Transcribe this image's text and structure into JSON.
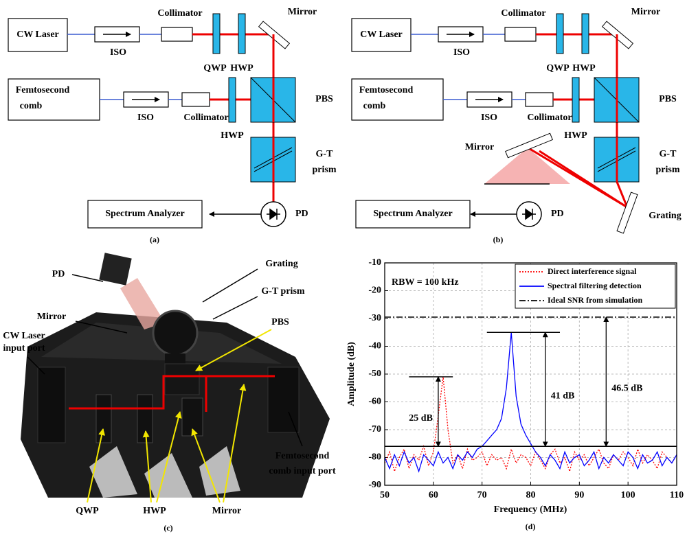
{
  "panel_a": {
    "cw_laser": "CW Laser",
    "iso_1": "ISO",
    "collimator_1": "Collimator",
    "qwp": "QWP",
    "hwp_1": "HWP",
    "mirror": "Mirror",
    "comb": [
      "Femtosecond",
      "comb"
    ],
    "iso_2": "ISO",
    "collimator_2": "Collimator",
    "hwp_2": "HWP",
    "pbs": "PBS",
    "gt_prism": [
      "G-T",
      "prism"
    ],
    "spectrum_analyzer": "Spectrum Analyzer",
    "pd": "PD",
    "caption": "(a)"
  },
  "panel_b": {
    "cw_laser": "CW Laser",
    "iso_1": "ISO",
    "collimator_1": "Collimator",
    "qwp": "QWP",
    "hwp_1": "HWP",
    "mirror": "Mirror",
    "comb": [
      "Femtosecond",
      "comb"
    ],
    "iso_2": "ISO",
    "collimator_2": "Collimator",
    "hwp_2": "HWP",
    "pbs": "PBS",
    "gt_prism": [
      "G-T",
      "prism"
    ],
    "spectrum_analyzer": "Spectrum Analyzer",
    "pd": "PD",
    "mirror_2": "Mirror",
    "grating": "Grating",
    "caption": "(b)"
  },
  "panel_c": {
    "pd": "PD",
    "grating": "Grating",
    "mirror_top": "Mirror",
    "gt_prism": "G-T prism",
    "pbs": "PBS",
    "cw_port": [
      "CW Laser",
      "input port"
    ],
    "comb_port": [
      "Femtosecond",
      "comb input port"
    ],
    "qwp": "QWP",
    "hwp": "HWP",
    "mirror_bottom": "Mirror",
    "caption": "(c)"
  },
  "chart_data": {
    "type": "line",
    "caption": "(d)",
    "x_label": "Frequency (MHz)",
    "y_label": "Amplitude (dB)",
    "note": "RBW = 100 kHz",
    "xlim": [
      50,
      110
    ],
    "ylim": [
      -90,
      -10
    ],
    "xticks": [
      50,
      60,
      70,
      80,
      90,
      100,
      110
    ],
    "yticks": [
      -10,
      -20,
      -30,
      -40,
      -50,
      -60,
      -70,
      -80,
      -90
    ],
    "grid": true,
    "legend": "top-right",
    "x": [
      50,
      51,
      52,
      53,
      54,
      55,
      56,
      57,
      58,
      59,
      60,
      61,
      62,
      63,
      64,
      65,
      66,
      67,
      68,
      69,
      70,
      71,
      72,
      73,
      74,
      75,
      76,
      77,
      78,
      79,
      80,
      81,
      82,
      83,
      84,
      85,
      86,
      87,
      88,
      89,
      90,
      91,
      92,
      93,
      94,
      95,
      96,
      97,
      98,
      99,
      100,
      101,
      102,
      103,
      104,
      105,
      106,
      107,
      108,
      109,
      110
    ],
    "series": [
      {
        "name": "Direct interference signal",
        "color": "#ff0000",
        "style": "dotted",
        "values": [
          -82,
          -78,
          -85,
          -80,
          -77,
          -84,
          -79,
          -81,
          -76,
          -83,
          -78,
          -65,
          -51,
          -70,
          -82,
          -79,
          -84,
          -77,
          -81,
          -80,
          -78,
          -83,
          -79,
          -81,
          -80,
          -84,
          -77,
          -82,
          -79,
          -80,
          -83,
          -78,
          -81,
          -84,
          -79,
          -77,
          -82,
          -80,
          -85,
          -78,
          -81,
          -79,
          -83,
          -80,
          -77,
          -82,
          -84,
          -79,
          -81,
          -78,
          -80,
          -83,
          -77,
          -82,
          -79,
          -81,
          -84,
          -78,
          -80,
          -82,
          -79
        ]
      },
      {
        "name": "Spectral filtering detection",
        "color": "#0000ff",
        "style": "solid",
        "values": [
          -80,
          -84,
          -79,
          -83,
          -78,
          -82,
          -80,
          -85,
          -79,
          -81,
          -83,
          -78,
          -82,
          -80,
          -84,
          -79,
          -81,
          -78,
          -80,
          -77,
          -76,
          -74,
          -72,
          -70,
          -66,
          -55,
          -35,
          -58,
          -68,
          -72,
          -75,
          -78,
          -80,
          -83,
          -79,
          -81,
          -84,
          -78,
          -82,
          -80,
          -79,
          -83,
          -81,
          -78,
          -84,
          -80,
          -82,
          -79,
          -81,
          -83,
          -78,
          -80,
          -84,
          -79,
          -82,
          -81,
          -78,
          -83,
          -80,
          -82,
          -79
        ]
      },
      {
        "name": "Ideal SNR from simulation",
        "color": "#000000",
        "style": "dashdot",
        "x": [
          50,
          110
        ],
        "values": [
          -29.5,
          -29.5
        ]
      }
    ],
    "noise_floor": -76,
    "annotations": [
      {
        "text": "25 dB",
        "x": 61,
        "y_from": -76,
        "y_to": -51,
        "bar_x": [
          55,
          64
        ]
      },
      {
        "text": "41 dB",
        "x": 83,
        "y_from": -76,
        "y_to": -35,
        "bar_x": [
          71,
          86
        ]
      },
      {
        "text": "46.5 dB",
        "x": 95.5,
        "y_from": -76,
        "y_to": -29.5
      }
    ]
  }
}
